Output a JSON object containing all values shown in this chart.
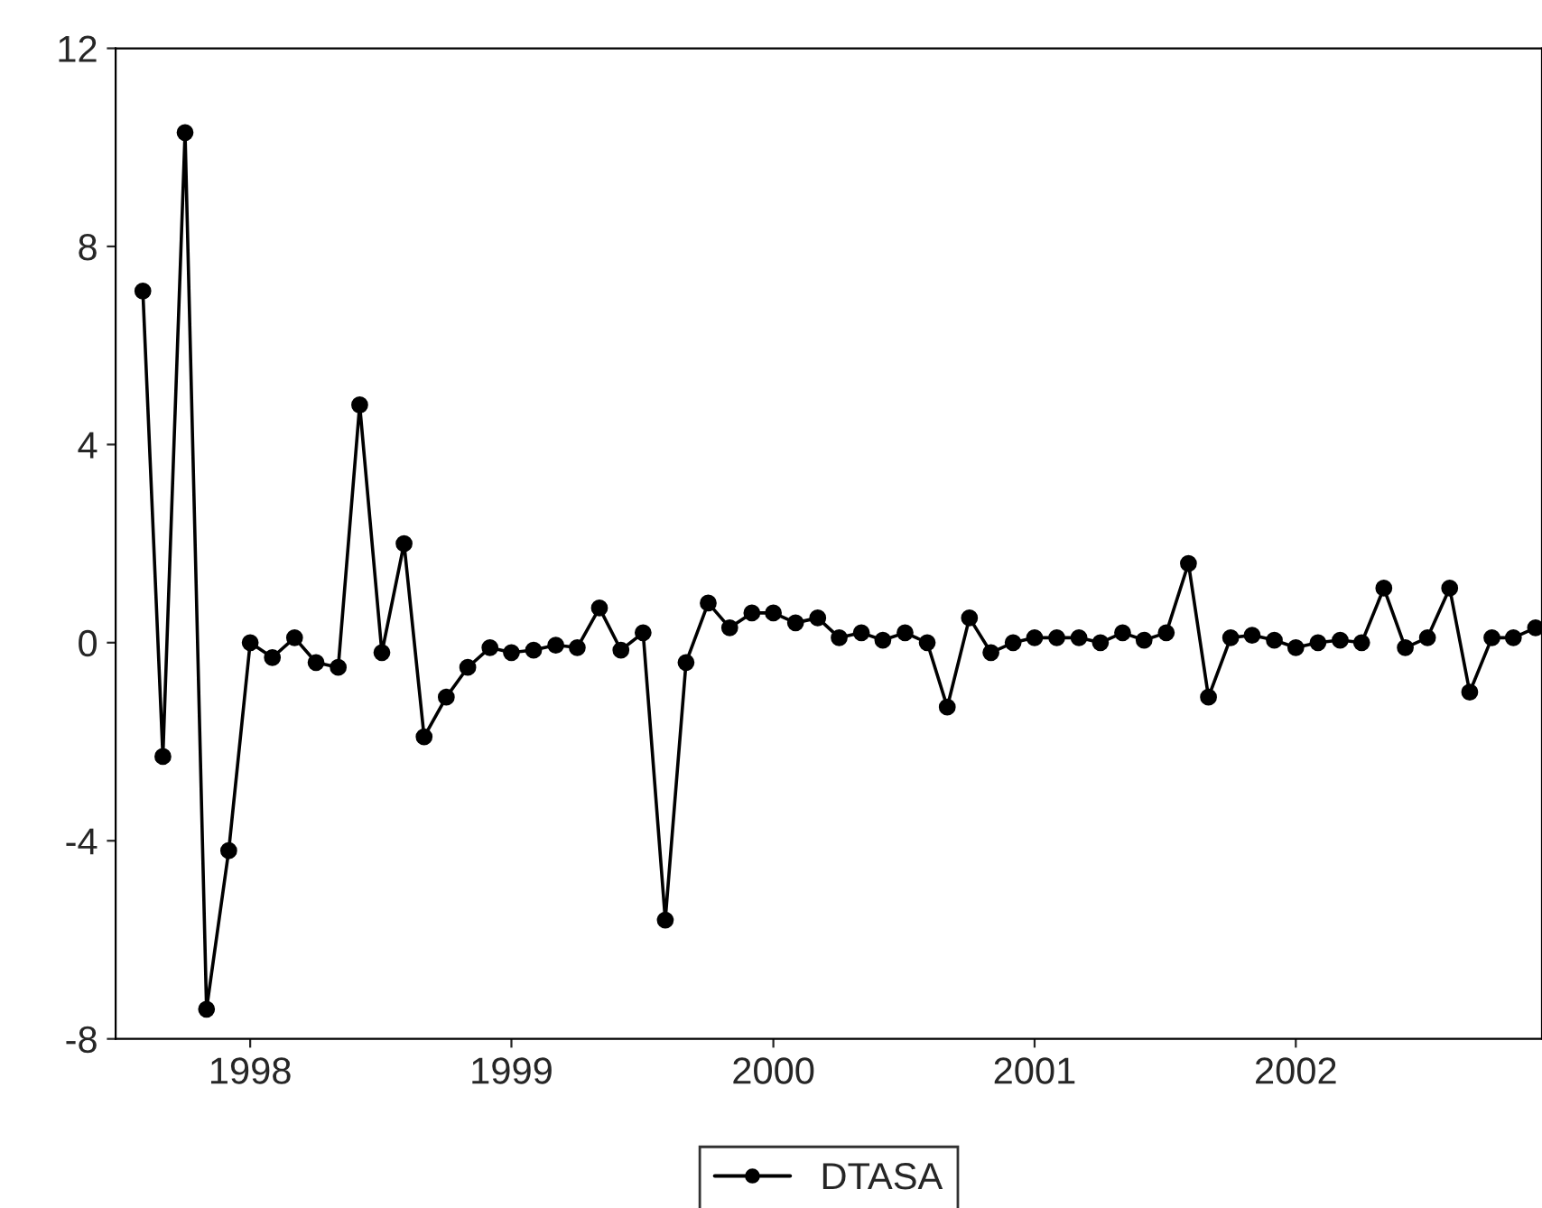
{
  "chart_data": {
    "type": "line",
    "x": [
      "1998-02",
      "1998-03",
      "1998-04",
      "1998-05",
      "1998-06",
      "1998-07",
      "1998-08",
      "1998-09",
      "1998-10",
      "1998-11",
      "1998-12",
      "1999-01",
      "1999-02",
      "1999-03",
      "1999-04",
      "1999-05",
      "1999-06",
      "1999-07",
      "1999-08",
      "1999-09",
      "1999-10",
      "1999-11",
      "1999-12",
      "2000-01",
      "2000-02",
      "2000-03",
      "2000-04",
      "2000-05",
      "2000-06",
      "2000-07",
      "2000-08",
      "2000-09",
      "2000-10",
      "2000-11",
      "2000-12",
      "2001-01",
      "2001-02",
      "2001-03",
      "2001-04",
      "2001-05",
      "2001-06",
      "2001-07",
      "2001-08",
      "2001-09",
      "2001-10",
      "2001-11",
      "2001-12",
      "2002-01",
      "2002-02",
      "2002-03",
      "2002-04",
      "2002-05",
      "2002-06",
      "2002-07",
      "2002-08",
      "2002-09",
      "2002-10",
      "2002-11",
      "2002-12",
      "2003-01",
      "2003-02",
      "2003-03",
      "2003-04",
      "2003-05",
      "2003-06"
    ],
    "series": [
      {
        "name": "DTASA",
        "color": "#000000",
        "values": [
          7.1,
          -2.3,
          10.3,
          -7.4,
          -4.2,
          0.0,
          -0.3,
          0.1,
          -0.4,
          -0.5,
          4.8,
          -0.2,
          2.0,
          -1.9,
          -1.1,
          -0.5,
          -0.1,
          -0.2,
          -0.15,
          -0.05,
          -0.1,
          0.7,
          -0.15,
          0.2,
          -5.6,
          -0.4,
          0.8,
          0.3,
          0.6,
          0.6,
          0.4,
          0.5,
          0.1,
          0.2,
          0.05,
          0.2,
          0.0,
          -1.3,
          0.5,
          -0.2,
          0.0,
          0.1,
          0.1,
          0.1,
          0.0,
          0.2,
          0.05,
          0.2,
          1.6,
          -1.1,
          0.1,
          0.15,
          0.05,
          -0.1,
          0.0,
          0.05,
          0.0,
          1.1,
          -0.1,
          0.1,
          1.1,
          -1.0,
          0.1,
          0.1,
          0.3
        ]
      }
    ],
    "xlim": [
      "1997-12-25",
      "2003-06-10"
    ],
    "xticks": [
      {
        "value": "1998-07-01",
        "label": "1998"
      },
      {
        "value": "1999-07-01",
        "label": "1999"
      },
      {
        "value": "2000-07-01",
        "label": "2000"
      },
      {
        "value": "2001-07-01",
        "label": "2001"
      },
      {
        "value": "2002-07-01",
        "label": "2002"
      }
    ],
    "ylim": [
      -8,
      12
    ],
    "yticks": [
      -8,
      -4,
      0,
      4,
      8,
      12
    ],
    "grid": false,
    "legend": "bottom",
    "marker": "circle",
    "line_style": "solid"
  }
}
